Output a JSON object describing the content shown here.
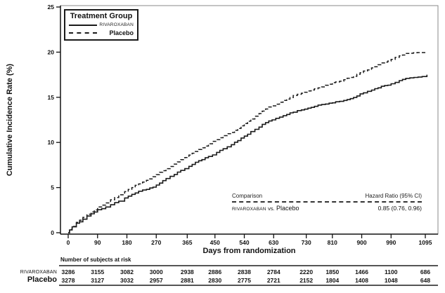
{
  "chart_data": {
    "type": "line",
    "subtype": "kaplan-meier-cumulative-incidence",
    "title": "",
    "xlabel": "Days from randomization",
    "ylabel": "Cumulative Incidence Rate (%)",
    "xlim": [
      0,
      1135
    ],
    "ylim": [
      0,
      25
    ],
    "x_ticks": [
      0,
      90,
      180,
      270,
      365,
      450,
      540,
      630,
      730,
      810,
      900,
      990,
      1095
    ],
    "y_ticks": [
      0,
      5,
      10,
      15,
      20,
      25
    ],
    "grid": false,
    "legend": {
      "title": "Treatment Group",
      "position": "top-left"
    },
    "series": [
      {
        "name": "RIVAROXABAN",
        "style": "solid",
        "color": "#1a1a1a",
        "points": [
          [
            0,
            0
          ],
          [
            4,
            0.3
          ],
          [
            12,
            0.65
          ],
          [
            25,
            1.05
          ],
          [
            45,
            1.5
          ],
          [
            70,
            2.1
          ],
          [
            90,
            2.55
          ],
          [
            115,
            2.85
          ],
          [
            130,
            3.1
          ],
          [
            155,
            3.5
          ],
          [
            173,
            3.85
          ],
          [
            195,
            4.25
          ],
          [
            216,
            4.6
          ],
          [
            240,
            4.8
          ],
          [
            260,
            5.05
          ],
          [
            280,
            5.5
          ],
          [
            300,
            6.0
          ],
          [
            325,
            6.45
          ],
          [
            345,
            6.9
          ],
          [
            370,
            7.35
          ],
          [
            390,
            7.8
          ],
          [
            410,
            8.1
          ],
          [
            430,
            8.45
          ],
          [
            455,
            8.9
          ],
          [
            475,
            9.3
          ],
          [
            500,
            9.75
          ],
          [
            520,
            10.2
          ],
          [
            540,
            10.7
          ],
          [
            560,
            11.2
          ],
          [
            585,
            11.7
          ],
          [
            605,
            12.2
          ],
          [
            625,
            12.5
          ],
          [
            648,
            12.8
          ],
          [
            670,
            13.1
          ],
          [
            690,
            13.35
          ],
          [
            715,
            13.6
          ],
          [
            735,
            13.8
          ],
          [
            755,
            14.0
          ],
          [
            777,
            14.2
          ],
          [
            800,
            14.35
          ],
          [
            820,
            14.5
          ],
          [
            845,
            14.65
          ],
          [
            865,
            14.85
          ],
          [
            885,
            15.15
          ],
          [
            905,
            15.5
          ],
          [
            930,
            15.8
          ],
          [
            950,
            16.05
          ],
          [
            970,
            16.3
          ],
          [
            990,
            16.5
          ],
          [
            1015,
            16.85
          ],
          [
            1035,
            17.1
          ],
          [
            1060,
            17.2
          ],
          [
            1085,
            17.3
          ],
          [
            1100,
            17.5
          ]
        ]
      },
      {
        "name": "Placebo",
        "style": "dashed",
        "color": "#1a1a1a",
        "points": [
          [
            0,
            0
          ],
          [
            4,
            0.35
          ],
          [
            12,
            0.7
          ],
          [
            25,
            1.15
          ],
          [
            45,
            1.7
          ],
          [
            70,
            2.3
          ],
          [
            90,
            2.85
          ],
          [
            115,
            3.3
          ],
          [
            130,
            3.65
          ],
          [
            155,
            4.2
          ],
          [
            173,
            4.55
          ],
          [
            195,
            5.0
          ],
          [
            216,
            5.4
          ],
          [
            240,
            5.8
          ],
          [
            260,
            6.2
          ],
          [
            280,
            6.7
          ],
          [
            300,
            7.1
          ],
          [
            325,
            7.6
          ],
          [
            345,
            8.1
          ],
          [
            370,
            8.6
          ],
          [
            390,
            9.0
          ],
          [
            410,
            9.4
          ],
          [
            430,
            9.85
          ],
          [
            455,
            10.3
          ],
          [
            475,
            10.75
          ],
          [
            500,
            11.1
          ],
          [
            520,
            11.55
          ],
          [
            540,
            12.1
          ],
          [
            560,
            12.6
          ],
          [
            585,
            13.2
          ],
          [
            605,
            13.7
          ],
          [
            625,
            14.05
          ],
          [
            648,
            14.45
          ],
          [
            670,
            14.8
          ],
          [
            690,
            15.2
          ],
          [
            715,
            15.45
          ],
          [
            735,
            15.7
          ],
          [
            755,
            15.95
          ],
          [
            777,
            16.15
          ],
          [
            800,
            16.45
          ],
          [
            820,
            16.7
          ],
          [
            845,
            16.95
          ],
          [
            865,
            17.2
          ],
          [
            885,
            17.55
          ],
          [
            905,
            17.9
          ],
          [
            930,
            18.25
          ],
          [
            950,
            18.6
          ],
          [
            970,
            18.9
          ],
          [
            990,
            19.2
          ],
          [
            1015,
            19.6
          ],
          [
            1035,
            19.85
          ],
          [
            1070,
            19.95
          ],
          [
            1100,
            20.0
          ]
        ]
      }
    ],
    "annotation": {
      "header_left": "Comparison",
      "header_right": "Hazard Ratio (95% CI)",
      "left_parts": [
        "RIVAROXABAN",
        "vs.",
        "Placebo"
      ],
      "value": "0.85 (0.76, 0.96)"
    }
  },
  "at_risk": {
    "header": "Number of subjects at risk",
    "days": [
      0,
      90,
      180,
      270,
      365,
      450,
      540,
      630,
      730,
      810,
      900,
      990,
      1095
    ],
    "rows": [
      {
        "label": "RIVAROXABAN",
        "values": [
          3286,
          3155,
          3082,
          3000,
          2938,
          2886,
          2838,
          2784,
          2220,
          1850,
          1466,
          1100,
          686
        ]
      },
      {
        "label": "Placebo",
        "values": [
          3278,
          3127,
          3032,
          2957,
          2881,
          2830,
          2775,
          2721,
          2152,
          1804,
          1408,
          1048,
          648
        ]
      }
    ]
  }
}
